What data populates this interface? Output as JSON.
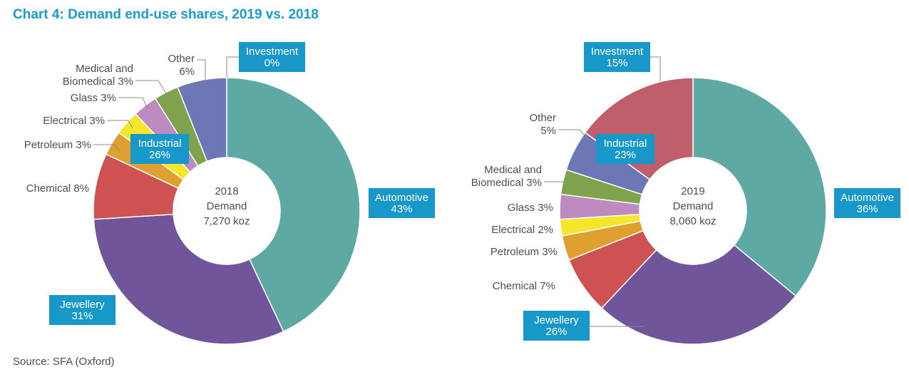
{
  "title": "Chart 4: Demand end-use shares, 2019 vs. 2018",
  "source": "Source: SFA (Oxford)",
  "colors": {
    "Automotive": "#5fa9a4",
    "Jewellery": "#71559a",
    "Chemical": "#cf5252",
    "Petroleum": "#e0a02f",
    "Electrical": "#f5e62c",
    "Glass": "#bd8bbf",
    "Medical and Biomedical": "#7fa34c",
    "Other": "#6d77b6",
    "Investment": "#c05e6c",
    "label_box": "#1798c9"
  },
  "chart_data": [
    {
      "type": "pie",
      "donut": true,
      "center_text": [
        "2018",
        "Demand",
        "7,270 koz"
      ],
      "categories": [
        "Automotive",
        "Jewellery",
        "Chemical",
        "Petroleum",
        "Electrical",
        "Glass",
        "Medical and Biomedical",
        "Other",
        "Investment"
      ],
      "values": [
        43,
        31,
        8,
        3,
        3,
        3,
        3,
        6,
        0
      ],
      "group_label": {
        "name": "Industrial",
        "value": "26%"
      },
      "labels": [
        {
          "key": "Automotive",
          "style": "box",
          "lines": [
            "Automotive",
            "43%"
          ]
        },
        {
          "key": "Jewellery",
          "style": "box",
          "lines": [
            "Jewellery",
            "31%"
          ]
        },
        {
          "key": "Chemical",
          "style": "text",
          "lines": [
            "Chemical 8%"
          ]
        },
        {
          "key": "Petroleum",
          "style": "text",
          "lines": [
            "Petroleum 3%"
          ]
        },
        {
          "key": "Electrical",
          "style": "text",
          "lines": [
            "Electrical 3%"
          ]
        },
        {
          "key": "Glass",
          "style": "text",
          "lines": [
            "Glass 3%"
          ]
        },
        {
          "key": "Medical and Biomedical",
          "style": "text",
          "lines": [
            "Medical and",
            "Biomedical 3%"
          ]
        },
        {
          "key": "Other",
          "style": "text",
          "lines": [
            "Other",
            "6%"
          ]
        },
        {
          "key": "Investment",
          "style": "box",
          "lines": [
            "Investment",
            "0%"
          ]
        }
      ]
    },
    {
      "type": "pie",
      "donut": true,
      "center_text": [
        "2019",
        "Demand",
        "8,060 koz"
      ],
      "categories": [
        "Automotive",
        "Jewellery",
        "Chemical",
        "Petroleum",
        "Electrical",
        "Glass",
        "Medical and Biomedical",
        "Other",
        "Investment"
      ],
      "values": [
        36,
        26,
        7,
        3,
        2,
        3,
        3,
        5,
        15
      ],
      "group_label": {
        "name": "Industrial",
        "value": "23%"
      },
      "labels": [
        {
          "key": "Automotive",
          "style": "box",
          "lines": [
            "Automotive",
            "36%"
          ]
        },
        {
          "key": "Jewellery",
          "style": "box",
          "lines": [
            "Jewellery",
            "26%"
          ]
        },
        {
          "key": "Chemical",
          "style": "text",
          "lines": [
            "Chemical 7%"
          ]
        },
        {
          "key": "Petroleum",
          "style": "text",
          "lines": [
            "Petroleum 3%"
          ]
        },
        {
          "key": "Electrical",
          "style": "text",
          "lines": [
            "Electrical 2%"
          ]
        },
        {
          "key": "Glass",
          "style": "text",
          "lines": [
            "Glass 3%"
          ]
        },
        {
          "key": "Medical and Biomedical",
          "style": "text",
          "lines": [
            "Medical and",
            "Biomedical 3%"
          ]
        },
        {
          "key": "Other",
          "style": "text",
          "lines": [
            "Other",
            "5%"
          ]
        },
        {
          "key": "Investment",
          "style": "box",
          "lines": [
            "Investment",
            "15%"
          ]
        }
      ]
    }
  ]
}
